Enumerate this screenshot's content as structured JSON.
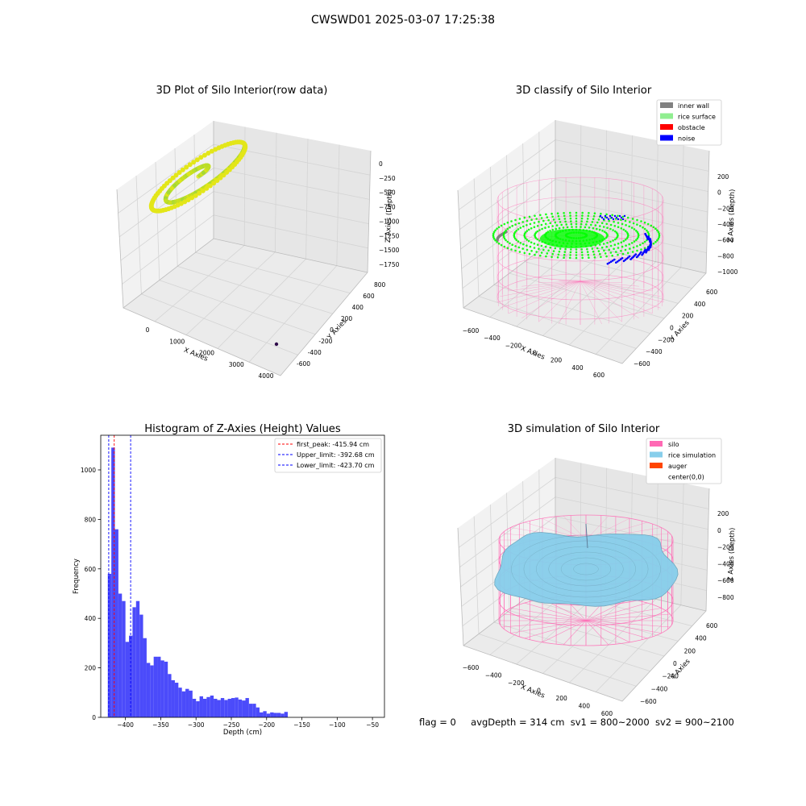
{
  "figure": {
    "suptitle": "CWSWD01 2025-03-07 17:25:38",
    "footer": {
      "flag": "flag = 0",
      "avg_depth": "avgDepth = 314 cm",
      "sv1": "sv1 = 800~2000",
      "sv2": "sv2 = 900~2100"
    }
  },
  "colors": {
    "raw_low": "#2e0a4a",
    "raw_high": "#e3e619",
    "raw_mid": "#9fd63a",
    "inner_wall": "#808080",
    "rice_surface": "#90ee90",
    "obstacle": "#ff0000",
    "noise": "#0000ff",
    "classified_rice": "#00ff00",
    "silo": "#ff69b4",
    "rice_simulation": "#87ceeb",
    "auger": "#ff4500",
    "hist_bar": "#4b4bfa",
    "first_peak_line": "#ff0000",
    "limit_lines": "#0000ff"
  },
  "chart_data": [
    {
      "type": "scatter3d",
      "title": "3D Plot of Silo Interior(row data)",
      "xlabel": "X Axies",
      "ylabel": "Y Axies",
      "zlabel": "Z Axies (Depth)",
      "xticks": [
        "0",
        "1000",
        "2000",
        "3000",
        "4000"
      ],
      "yticks": [
        "-600",
        "-400",
        "-200",
        "0",
        "200",
        "400",
        "600",
        "800"
      ],
      "zticks": [
        "0",
        "−250",
        "−500",
        "−750",
        "−1000",
        "−1250",
        "−1500",
        "−1750"
      ],
      "xlim": [
        -500,
        4300
      ],
      "ylim": [
        -700,
        850
      ],
      "zlim": [
        -1900,
        50
      ],
      "point_cloud": {
        "x_center": 0,
        "y_center": 0,
        "z_center": -320,
        "radius": 600
      },
      "outlier": {
        "x": 4100,
        "y": -650,
        "z": -1850
      }
    },
    {
      "type": "scatter3d",
      "title": "3D classify of Silo Interior",
      "xlabel": "X Axies",
      "ylabel": "Y Axies",
      "zlabel": "Z Axies (Depth)",
      "xticks": [
        "−600",
        "−400",
        "−200",
        "0",
        "200",
        "400",
        "600"
      ],
      "yticks": [
        "−600",
        "−400",
        "−200",
        "0",
        "200",
        "400",
        "600"
      ],
      "zticks": [
        "200",
        "0",
        "−200",
        "−400",
        "−600",
        "−800",
        "−1000"
      ],
      "xlim": [
        -700,
        700
      ],
      "ylim": [
        -700,
        700
      ],
      "zlim": [
        -1000,
        300
      ],
      "legend_position": "upper-right",
      "legend": [
        {
          "label": "inner wall",
          "color_key": "inner_wall"
        },
        {
          "label": "rice surface",
          "color_key": "rice_surface"
        },
        {
          "label": "obstacle",
          "color_key": "obstacle"
        },
        {
          "label": "noise",
          "color_key": "noise"
        }
      ],
      "silo": {
        "radius": 600,
        "z_top": 100,
        "z_bottom": -1000
      },
      "surface_depth": -400
    },
    {
      "type": "bar",
      "title": "Histogram of Z-Axies (Height) Values",
      "xlabel": "Depth (cm)",
      "ylabel": "Frequency",
      "xticks": [
        -400,
        -350,
        -300,
        -250,
        -200,
        -150,
        -100,
        -50
      ],
      "yticks": [
        0,
        200,
        400,
        600,
        800,
        1000
      ],
      "xlim": [
        -435,
        -33
      ],
      "ylim": [
        0,
        1140
      ],
      "bin_width": 5,
      "bin_start": -425,
      "values": [
        580,
        1090,
        760,
        500,
        470,
        305,
        330,
        445,
        470,
        415,
        320,
        220,
        210,
        245,
        245,
        230,
        225,
        175,
        150,
        140,
        120,
        105,
        115,
        108,
        75,
        65,
        85,
        75,
        82,
        88,
        75,
        70,
        78,
        70,
        75,
        78,
        80,
        72,
        68,
        78,
        55,
        55,
        40,
        20,
        25,
        15,
        20,
        18,
        18,
        15,
        22
      ],
      "legend_position": "upper-right",
      "lines": [
        {
          "label": "first_peak: -415.94 cm",
          "x": -415.94,
          "color_key": "first_peak_line"
        },
        {
          "label": "Upper_limit: -392.68 cm",
          "x": -392.68,
          "color_key": "limit_lines"
        },
        {
          "label": "Lower_limit: -423.70 cm",
          "x": -423.7,
          "color_key": "limit_lines"
        }
      ]
    },
    {
      "type": "surface3d",
      "title": "3D simulation of Silo Interior",
      "xlabel": "X Axies",
      "ylabel": "Y Axies",
      "zlabel": "Z Axies (Depth)",
      "xticks": [
        "−600",
        "−400",
        "−200",
        "0",
        "200",
        "400",
        "600"
      ],
      "yticks": [
        "−600",
        "−400",
        "−200",
        "0",
        "200",
        "400",
        "600"
      ],
      "zticks": [
        "200",
        "0",
        "−200",
        "−400",
        "−600",
        "−800"
      ],
      "xlim": [
        -700,
        700
      ],
      "ylim": [
        -700,
        700
      ],
      "zlim": [
        -950,
        300
      ],
      "legend_position": "upper-right",
      "legend": [
        {
          "label": "silo",
          "color_key": "silo"
        },
        {
          "label": "rice simulation",
          "color_key": "rice_simulation"
        },
        {
          "label": "auger",
          "color_key": "auger"
        },
        {
          "label": "center(0,0)",
          "color_key": ""
        }
      ],
      "silo": {
        "radius": 600,
        "z_top": 0,
        "z_bottom": -950
      },
      "surface_depth": -314
    }
  ]
}
